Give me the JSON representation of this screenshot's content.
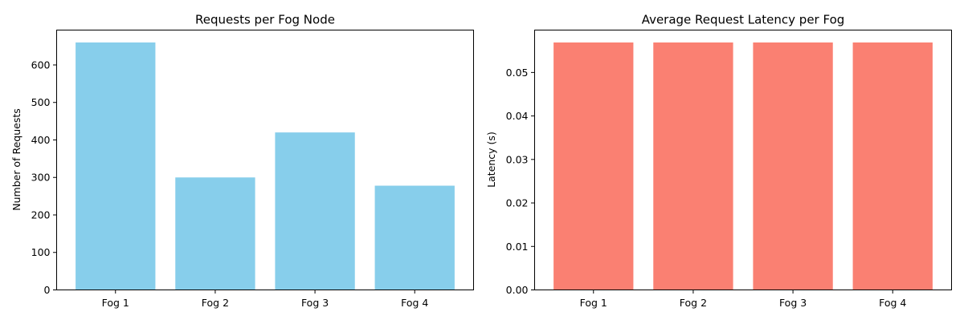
{
  "chart_data": [
    {
      "type": "bar",
      "title": "Requests per Fog Node",
      "xlabel": "",
      "ylabel": "Number of Requests",
      "categories": [
        "Fog 1",
        "Fog 2",
        "Fog 3",
        "Fog 4"
      ],
      "values": [
        660,
        300,
        420,
        278
      ],
      "ylim": [
        0,
        693
      ],
      "yticks": [
        0,
        100,
        200,
        300,
        400,
        500,
        600
      ],
      "ytick_labels": [
        "0",
        "100",
        "200",
        "300",
        "400",
        "500",
        "600"
      ],
      "color": "#87CEEB",
      "grid": false
    },
    {
      "type": "bar",
      "title": "Average Request Latency per Fog",
      "xlabel": "",
      "ylabel": "Latency (s)",
      "categories": [
        "Fog 1",
        "Fog 2",
        "Fog 3",
        "Fog 4"
      ],
      "values": [
        0.0569,
        0.0569,
        0.0569,
        0.0569
      ],
      "ylim": [
        0,
        0.05975
      ],
      "yticks": [
        0,
        0.01,
        0.02,
        0.03,
        0.04,
        0.05
      ],
      "ytick_labels": [
        "0.00",
        "0.01",
        "0.02",
        "0.03",
        "0.04",
        "0.05"
      ],
      "color": "#FA8072",
      "grid": false
    }
  ]
}
